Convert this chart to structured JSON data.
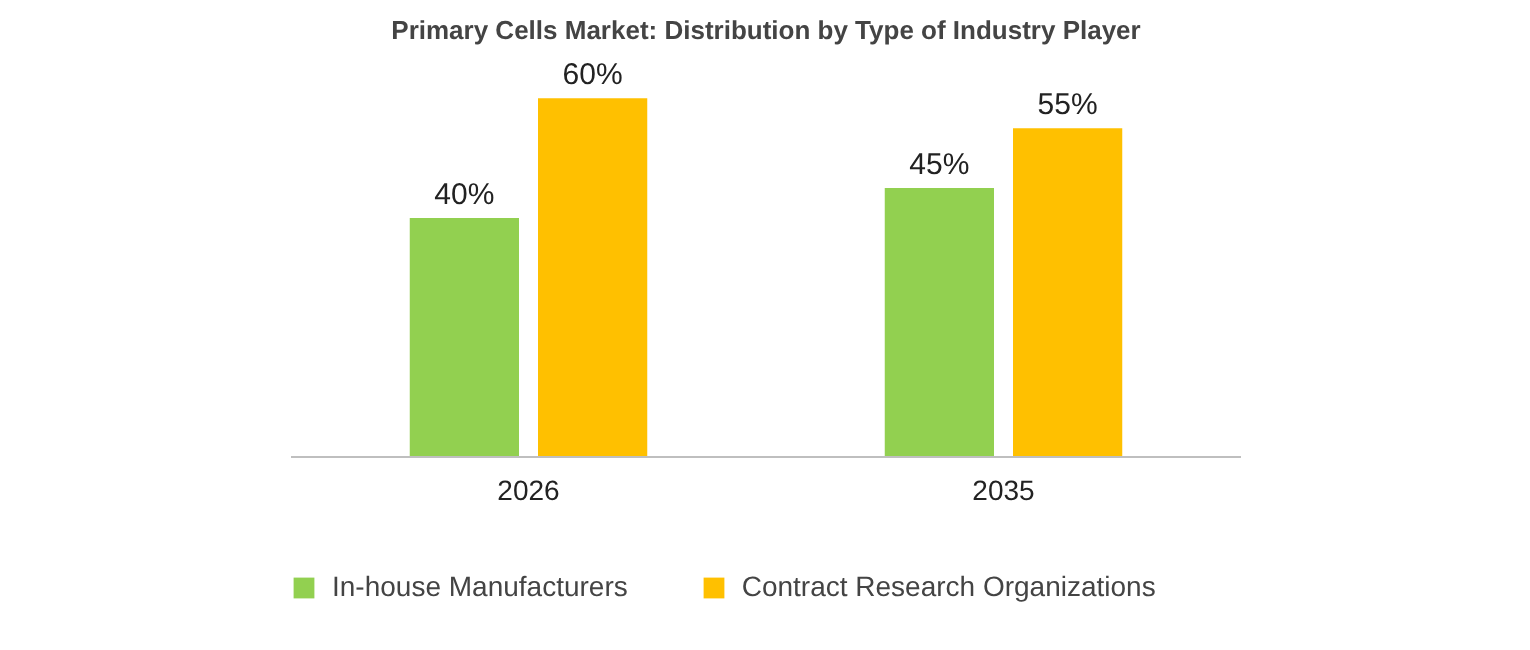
{
  "chart_data": {
    "type": "bar",
    "title": "Primary Cells Market: Distribution by Type of Industry Player",
    "categories": [
      "2026",
      "2035"
    ],
    "series": [
      {
        "name": "In-house Manufacturers",
        "color": "#92d050",
        "values": [
          40,
          45
        ],
        "value_labels": [
          "40%",
          "45%"
        ]
      },
      {
        "name": "Contract Research Organizations",
        "color": "#ffc000",
        "values": [
          60,
          55
        ],
        "value_labels": [
          "60%",
          "55%"
        ]
      }
    ],
    "legend": "bottom",
    "grid": false,
    "tick_labels": "x"
  }
}
